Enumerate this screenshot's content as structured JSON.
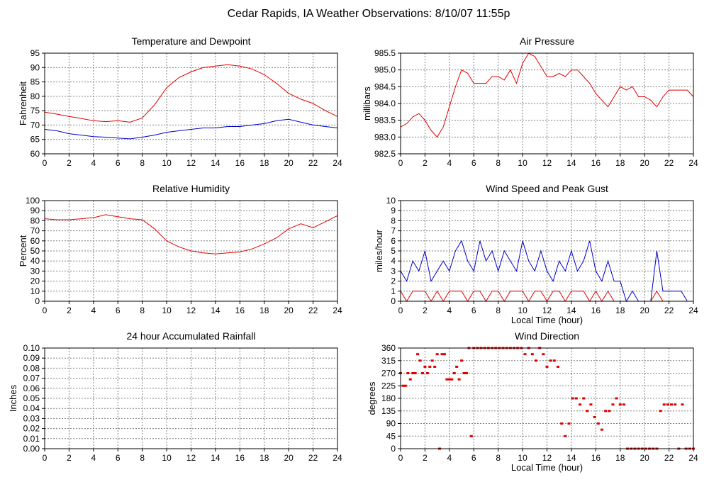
{
  "page": {
    "title": "Cedar Rapids, IA Weather Observations: 8/10/07 11:55p"
  },
  "colors": {
    "red": "#e00000",
    "blue": "#0000c8",
    "grid": "#7f7f7f"
  },
  "chart_data": [
    {
      "id": "temp",
      "type": "line",
      "title": "Temperature and Dewpoint",
      "ylabel": "Fahrenheit",
      "xlabel": "",
      "xlim": [
        0,
        24
      ],
      "ylim": [
        60,
        95
      ],
      "xticks": [
        0,
        2,
        4,
        6,
        8,
        10,
        12,
        14,
        16,
        18,
        20,
        22,
        24
      ],
      "yticks": [
        60,
        65,
        70,
        75,
        80,
        85,
        90,
        95
      ],
      "ytick_labels": [
        "60",
        "65",
        "70",
        "75",
        "80",
        "85",
        "90",
        "95"
      ],
      "grid": true,
      "series": [
        {
          "color": "red",
          "x": [
            0,
            1,
            2,
            3,
            4,
            5,
            6,
            7,
            8,
            9,
            10,
            11,
            12,
            13,
            14,
            15,
            16,
            17,
            18,
            19,
            20,
            21,
            22,
            23,
            24
          ],
          "y": [
            74.5,
            73.8,
            73,
            72.3,
            71.5,
            71.2,
            71.5,
            71,
            72.5,
            77,
            83,
            86.5,
            88.5,
            90,
            90.5,
            91,
            90.5,
            89.5,
            87.5,
            84.5,
            81,
            79,
            77.5,
            75,
            73
          ]
        },
        {
          "color": "blue",
          "x": [
            0,
            1,
            2,
            3,
            4,
            5,
            6,
            7,
            8,
            9,
            10,
            11,
            12,
            13,
            14,
            15,
            16,
            17,
            18,
            19,
            20,
            21,
            22,
            23,
            24
          ],
          "y": [
            68.5,
            68,
            67,
            66.5,
            66,
            65.8,
            65.5,
            65.2,
            65.8,
            66.5,
            67.5,
            68,
            68.5,
            69,
            69,
            69.5,
            69.5,
            70,
            70.5,
            71.5,
            72,
            71,
            70,
            69.5,
            69
          ]
        }
      ]
    },
    {
      "id": "pressure",
      "type": "line",
      "title": "Air Pressure",
      "ylabel": "millibars",
      "xlabel": "",
      "xlim": [
        0,
        24
      ],
      "ylim": [
        982.5,
        985.5
      ],
      "xticks": [
        0,
        2,
        4,
        6,
        8,
        10,
        12,
        14,
        16,
        18,
        20,
        22,
        24
      ],
      "yticks": [
        982.5,
        983,
        983.5,
        984,
        984.5,
        985,
        985.5
      ],
      "ytick_labels": [
        "982.5",
        "983.0",
        "983.5",
        "984.0",
        "984.5",
        "985.0",
        "985.5"
      ],
      "grid": true,
      "series": [
        {
          "color": "red",
          "x": [
            0,
            0.5,
            1,
            1.5,
            2,
            2.5,
            3,
            3.5,
            4,
            4.5,
            5,
            5.5,
            6,
            6.5,
            7,
            7.5,
            8,
            8.5,
            9,
            9.5,
            10,
            10.5,
            11,
            11.5,
            12,
            12.5,
            13,
            13.5,
            14,
            14.5,
            15,
            15.5,
            16,
            16.5,
            17,
            17.5,
            18,
            18.5,
            19,
            19.5,
            20,
            20.5,
            21,
            21.5,
            22,
            22.5,
            23,
            23.5,
            24
          ],
          "y": [
            983.3,
            983.4,
            983.6,
            983.7,
            983.5,
            983.2,
            983.0,
            983.3,
            983.9,
            984.5,
            985.0,
            984.9,
            984.6,
            984.6,
            984.6,
            984.8,
            984.8,
            984.7,
            985.0,
            984.6,
            985.2,
            985.5,
            985.4,
            985.1,
            984.8,
            984.8,
            984.9,
            984.8,
            985.0,
            985.0,
            984.8,
            984.6,
            984.3,
            984.1,
            983.9,
            984.2,
            984.5,
            984.4,
            984.5,
            984.2,
            984.2,
            984.1,
            983.9,
            984.2,
            984.4,
            984.4,
            984.4,
            984.4,
            984.2
          ]
        }
      ]
    },
    {
      "id": "rh",
      "type": "line",
      "title": "Relative Humidity",
      "ylabel": "Percent",
      "xlabel": "",
      "xlim": [
        0,
        24
      ],
      "ylim": [
        0,
        100
      ],
      "xticks": [
        0,
        2,
        4,
        6,
        8,
        10,
        12,
        14,
        16,
        18,
        20,
        22,
        24
      ],
      "yticks": [
        0,
        10,
        20,
        30,
        40,
        50,
        60,
        70,
        80,
        90,
        100
      ],
      "ytick_labels": [
        "0",
        "10",
        "20",
        "30",
        "40",
        "50",
        "60",
        "70",
        "80",
        "90",
        "100"
      ],
      "grid": true,
      "series": [
        {
          "color": "red",
          "x": [
            0,
            1,
            2,
            3,
            4,
            5,
            6,
            7,
            8,
            9,
            10,
            11,
            12,
            13,
            14,
            15,
            16,
            17,
            18,
            19,
            20,
            21,
            22,
            23,
            24
          ],
          "y": [
            82,
            81,
            81,
            82,
            83,
            86,
            84,
            82,
            81,
            72,
            60,
            54,
            50,
            48,
            47,
            48,
            49,
            52,
            57,
            63,
            72,
            77,
            73,
            79,
            85
          ]
        }
      ]
    },
    {
      "id": "wind",
      "type": "line",
      "title": "Wind Speed and Peak Gust",
      "ylabel": "miles/hour",
      "xlabel": "Local Time (hour)",
      "xlim": [
        0,
        24
      ],
      "ylim": [
        0,
        10
      ],
      "xticks": [
        0,
        2,
        4,
        6,
        8,
        10,
        12,
        14,
        16,
        18,
        20,
        22,
        24
      ],
      "yticks": [
        0,
        1,
        2,
        3,
        4,
        5,
        6,
        7,
        8,
        9,
        10
      ],
      "ytick_labels": [
        "0",
        "1",
        "2",
        "3",
        "4",
        "5",
        "6",
        "7",
        "8",
        "9",
        "10"
      ],
      "grid": true,
      "series": [
        {
          "color": "blue",
          "x": [
            0,
            0.5,
            1,
            1.5,
            2,
            2.5,
            3,
            3.5,
            4,
            4.5,
            5,
            5.5,
            6,
            6.5,
            7,
            7.5,
            8,
            8.5,
            9,
            9.5,
            10,
            10.5,
            11,
            11.5,
            12,
            12.5,
            13,
            13.5,
            14,
            14.5,
            15,
            15.5,
            16,
            16.5,
            17,
            17.5,
            18,
            18.5,
            19,
            19.5,
            20,
            20.5,
            21,
            21.5,
            22,
            22.5,
            23,
            23.5,
            24
          ],
          "y": [
            3,
            2,
            4,
            3,
            5,
            2,
            3,
            4,
            3,
            5,
            6,
            4,
            3,
            6,
            4,
            5,
            3,
            5,
            4,
            3,
            6,
            4,
            3,
            5,
            3,
            2,
            4,
            3,
            5,
            3,
            4,
            6,
            3,
            2,
            4,
            2,
            2,
            0,
            1,
            0,
            0,
            0,
            5,
            1,
            1,
            1,
            1,
            0,
            0
          ]
        },
        {
          "color": "red",
          "x": [
            0,
            0.5,
            1,
            1.5,
            2,
            2.5,
            3,
            3.5,
            4,
            4.5,
            5,
            5.5,
            6,
            6.5,
            7,
            7.5,
            8,
            8.5,
            9,
            9.5,
            10,
            10.5,
            11,
            11.5,
            12,
            12.5,
            13,
            13.5,
            14,
            14.5,
            15,
            15.5,
            16,
            16.5,
            17,
            17.5,
            18,
            18.5,
            19,
            19.5,
            20,
            20.5,
            21,
            21.5,
            22,
            22.5,
            23,
            23.5,
            24
          ],
          "y": [
            1,
            0,
            1,
            1,
            1,
            0,
            1,
            0,
            1,
            1,
            1,
            0,
            1,
            1,
            0,
            1,
            1,
            0,
            1,
            1,
            1,
            0,
            1,
            1,
            0,
            1,
            1,
            0,
            1,
            1,
            1,
            0,
            1,
            0,
            1,
            0,
            0,
            0,
            0,
            0,
            0,
            0,
            1,
            0,
            0,
            0,
            0,
            0,
            0
          ]
        }
      ]
    },
    {
      "id": "rain",
      "type": "line",
      "title": "24 hour Accumulated Rainfall",
      "ylabel": "Inches",
      "xlabel": "",
      "xlim": [
        0,
        24
      ],
      "ylim": [
        0,
        0.1
      ],
      "xticks": [
        0,
        2,
        4,
        6,
        8,
        10,
        12,
        14,
        16,
        18,
        20,
        22,
        24
      ],
      "yticks": [
        0,
        0.01,
        0.02,
        0.03,
        0.04,
        0.05,
        0.06,
        0.07,
        0.08,
        0.09,
        0.1
      ],
      "ytick_labels": [
        "0.00",
        "0.01",
        "0.02",
        "0.03",
        "0.04",
        "0.05",
        "0.06",
        "0.07",
        "0.08",
        "0.09",
        "0.10"
      ],
      "grid": true,
      "series": [
        {
          "color": "red",
          "x": [
            0,
            24
          ],
          "y": [
            0,
            0
          ]
        }
      ]
    },
    {
      "id": "dir",
      "type": "scatter",
      "title": "Wind Direction",
      "ylabel": "degrees",
      "xlabel": "Local Time (hour)",
      "xlim": [
        0,
        24
      ],
      "ylim": [
        0,
        360
      ],
      "xticks": [
        0,
        2,
        4,
        6,
        8,
        10,
        12,
        14,
        16,
        18,
        20,
        22,
        24
      ],
      "yticks": [
        0,
        45,
        90,
        135,
        180,
        225,
        270,
        315,
        360
      ],
      "ytick_labels": [
        "0",
        "45",
        "90",
        "135",
        "180",
        "225",
        "270",
        "315",
        "360"
      ],
      "grid": true,
      "series": [
        {
          "color": "red",
          "x": [
            0,
            0.2,
            0.4,
            0.6,
            0.8,
            1.0,
            1.2,
            1.4,
            1.6,
            1.8,
            2.0,
            2.2,
            2.4,
            2.6,
            2.8,
            3.0,
            3.2,
            3.4,
            3.6,
            3.8,
            4.0,
            4.2,
            4.4,
            4.6,
            4.8,
            5.0,
            5.2,
            5.4,
            5.6,
            5.8,
            6.0,
            6.3,
            6.6,
            6.9,
            7.2,
            7.5,
            7.8,
            8.1,
            8.4,
            8.7,
            9.0,
            9.3,
            9.6,
            9.9,
            10.2,
            10.5,
            10.8,
            11.1,
            11.4,
            11.7,
            12.0,
            12.3,
            12.6,
            12.9,
            13.2,
            13.5,
            13.8,
            14.1,
            14.4,
            14.7,
            15.0,
            15.3,
            15.6,
            15.9,
            16.2,
            16.5,
            16.8,
            17.1,
            17.4,
            17.7,
            18.0,
            18.3,
            18.6,
            18.9,
            19.2,
            19.5,
            19.8,
            20.1,
            20.4,
            20.7,
            21.0,
            21.3,
            21.6,
            21.9,
            22.2,
            22.5,
            22.8,
            23.1,
            23.4,
            23.7,
            24.0
          ],
          "y": [
            270,
            225,
            225,
            270,
            248,
            270,
            270,
            338,
            315,
            270,
            293,
            270,
            293,
            315,
            293,
            338,
            0,
            338,
            338,
            248,
            248,
            248,
            270,
            293,
            248,
            315,
            270,
            270,
            360,
            45,
            360,
            360,
            360,
            360,
            360,
            360,
            360,
            360,
            360,
            360,
            360,
            360,
            360,
            360,
            338,
            360,
            338,
            315,
            360,
            338,
            293,
            315,
            315,
            293,
            90,
            45,
            90,
            180,
            180,
            158,
            180,
            135,
            158,
            113,
            90,
            68,
            135,
            135,
            158,
            180,
            158,
            158,
            0,
            0,
            0,
            0,
            0,
            0,
            0,
            0,
            0,
            135,
            158,
            158,
            158,
            158,
            0,
            158,
            0,
            0,
            0
          ]
        }
      ]
    }
  ]
}
